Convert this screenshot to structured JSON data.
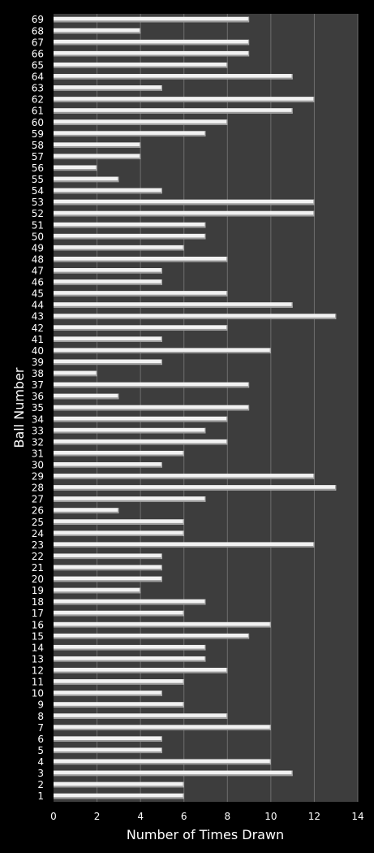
{
  "chart_data": {
    "type": "bar",
    "orientation": "horizontal",
    "title": "",
    "xlabel": "Number of Times Drawn",
    "ylabel": "Ball Number",
    "xlim": [
      0,
      14
    ],
    "xticks": [
      0,
      2,
      4,
      6,
      8,
      10,
      12,
      14
    ],
    "grid": "vertical",
    "legend": "none",
    "colors": {
      "background": "#000000",
      "plot_area": "#3d3d3d",
      "bar": "#f2f2f2",
      "grid": "#6e6e6e",
      "text": "#ffffff"
    },
    "categories": [
      "1",
      "2",
      "3",
      "4",
      "5",
      "6",
      "7",
      "8",
      "9",
      "10",
      "11",
      "12",
      "13",
      "14",
      "15",
      "16",
      "17",
      "18",
      "19",
      "20",
      "21",
      "22",
      "23",
      "24",
      "25",
      "26",
      "27",
      "28",
      "29",
      "30",
      "31",
      "32",
      "33",
      "34",
      "35",
      "36",
      "37",
      "38",
      "39",
      "40",
      "41",
      "42",
      "43",
      "44",
      "45",
      "46",
      "47",
      "48",
      "49",
      "50",
      "51",
      "52",
      "53",
      "54",
      "55",
      "56",
      "57",
      "58",
      "59",
      "60",
      "61",
      "62",
      "63",
      "64",
      "65",
      "66",
      "67",
      "68",
      "69"
    ],
    "values": [
      6,
      6,
      11,
      10,
      5,
      5,
      10,
      8,
      6,
      5,
      6,
      8,
      7,
      7,
      9,
      10,
      6,
      7,
      4,
      5,
      5,
      5,
      12,
      6,
      6,
      3,
      7,
      13,
      12,
      5,
      6,
      8,
      7,
      8,
      9,
      3,
      9,
      2,
      5,
      10,
      5,
      8,
      13,
      11,
      8,
      5,
      5,
      8,
      6,
      7,
      7,
      12,
      12,
      5,
      3,
      2,
      4,
      4,
      7,
      8,
      11,
      12,
      5,
      11,
      8,
      9,
      9,
      4,
      9
    ]
  }
}
